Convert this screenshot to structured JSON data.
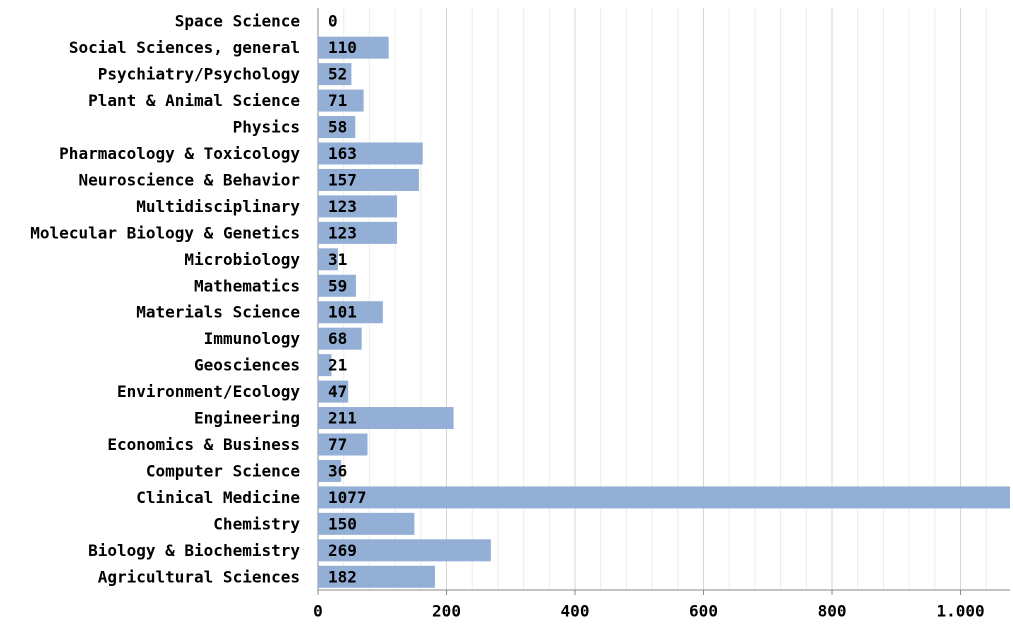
{
  "chart_data": {
    "type": "bar",
    "orientation": "horizontal",
    "categories": [
      "Space Science",
      "Social Sciences, general",
      "Psychiatry/Psychology",
      "Plant & Animal Science",
      "Physics",
      "Pharmacology & Toxicology",
      "Neuroscience & Behavior",
      "Multidisciplinary",
      "Molecular Biology & Genetics",
      "Microbiology",
      "Mathematics",
      "Materials Science",
      "Immunology",
      "Geosciences",
      "Environment/Ecology",
      "Engineering",
      "Economics & Business",
      "Computer Science",
      "Clinical Medicine",
      "Chemistry",
      "Biology & Biochemistry",
      "Agricultural Sciences"
    ],
    "values": [
      0,
      110,
      52,
      71,
      58,
      163,
      157,
      123,
      123,
      31,
      59,
      101,
      68,
      21,
      47,
      211,
      77,
      36,
      1077,
      150,
      269,
      182
    ],
    "color": "#93afd6",
    "xlim": [
      0,
      1077
    ],
    "xticks": [
      0,
      200,
      400,
      600,
      800,
      {
        "value": 1000,
        "label": "1.000"
      }
    ],
    "minor_xticks": [
      40,
      80,
      120,
      160,
      240,
      280,
      320,
      360,
      440,
      480,
      520,
      560,
      640,
      680,
      720,
      760,
      840,
      880,
      920,
      960,
      1040
    ],
    "grid": true
  }
}
